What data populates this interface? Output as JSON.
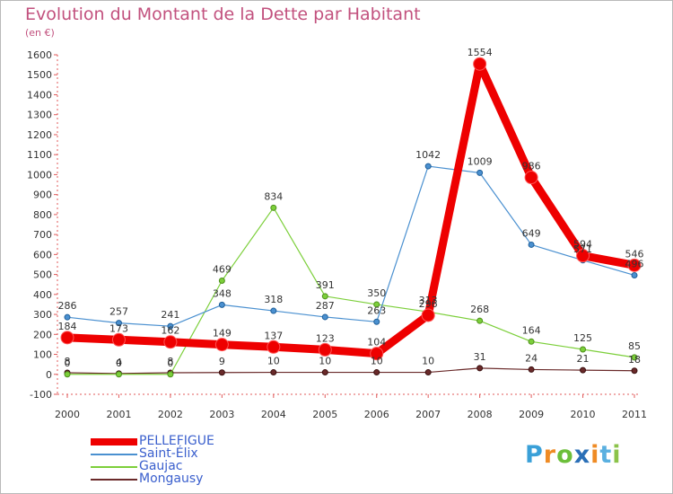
{
  "title": "Evolution du Montant de la Dette par Habitant",
  "subtitle": "(en €)",
  "logo": {
    "text": "Proxiti",
    "letter_colors": [
      "#3aa0d8",
      "#ef8b24",
      "#6cbf3a",
      "#2a6fb7",
      "#ef8b24",
      "#5ab0e0",
      "#8bc34a"
    ]
  },
  "chart_data": {
    "type": "line",
    "x": [
      "2000",
      "2001",
      "2002",
      "2003",
      "2004",
      "2005",
      "2006",
      "2007",
      "2008",
      "2009",
      "2010",
      "2011"
    ],
    "ylim": [
      -100,
      1600
    ],
    "yticks": [
      -100,
      0,
      100,
      200,
      300,
      400,
      500,
      600,
      700,
      800,
      900,
      1000,
      1100,
      1200,
      1300,
      1400,
      1500,
      1600
    ],
    "grid": false,
    "legend_position": "bottom-left",
    "series": [
      {
        "name": "PELLEFIGUE",
        "color": "#ee0000",
        "values": [
          184,
          173,
          162,
          149,
          137,
          123,
          104,
          296,
          1554,
          986,
          594,
          546
        ],
        "labels": [
          "184",
          "173",
          "162",
          "149",
          "137",
          "123",
          "104",
          "296",
          "1554",
          "986",
          "594",
          "546"
        ]
      },
      {
        "name": "Saint-Élix",
        "color": "#4a90d0",
        "values": [
          286,
          257,
          241,
          348,
          318,
          287,
          263,
          1042,
          1009,
          649,
          571,
          496
        ],
        "labels": [
          "286",
          "257",
          "241",
          "348",
          "318",
          "287",
          "263",
          "1042",
          "1009",
          "649",
          "571",
          "496"
        ]
      },
      {
        "name": "Gaujac",
        "color": "#7ccf3a",
        "values": [
          0,
          0,
          0,
          469,
          834,
          391,
          350,
          313,
          268,
          164,
          125,
          85
        ],
        "labels": [
          "0",
          "0",
          "0",
          "469",
          "834",
          "391",
          "350",
          "313",
          "268",
          "164",
          "125",
          "85"
        ]
      },
      {
        "name": "Mongausy",
        "color": "#6a2a2a",
        "values": [
          8,
          4,
          8,
          9,
          10,
          10,
          10,
          10,
          31,
          24,
          21,
          18
        ],
        "labels": [
          "8",
          "4",
          "8",
          "9",
          "10",
          "10",
          "10",
          "10",
          "31",
          "24",
          "21",
          "18"
        ]
      }
    ]
  }
}
